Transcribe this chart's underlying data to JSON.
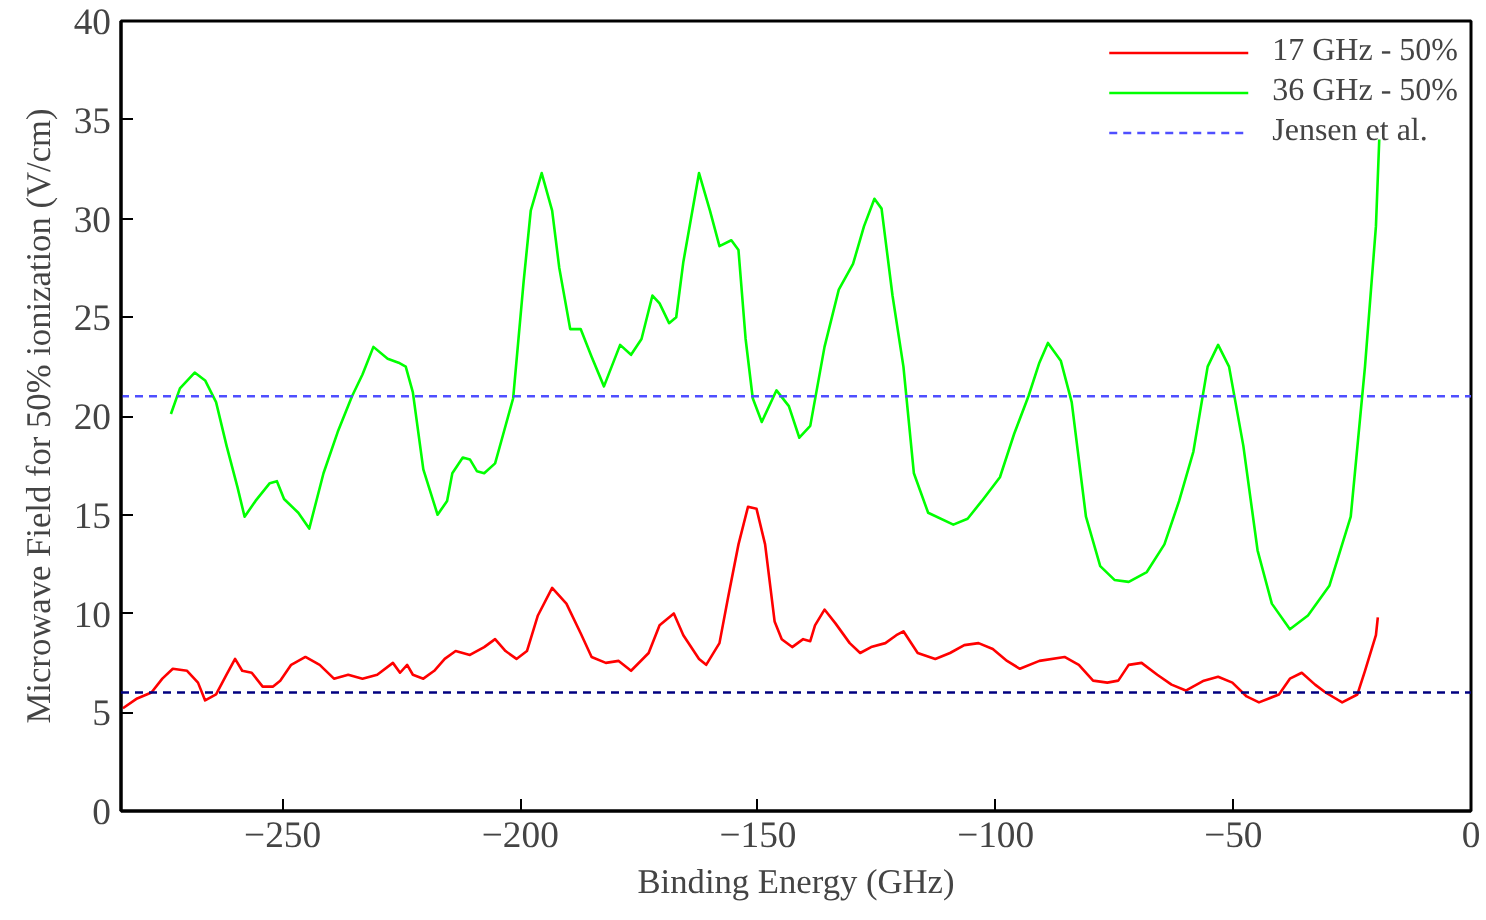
{
  "chart_data": {
    "type": "line",
    "xlabel": "Binding Energy (GHz)",
    "ylabel": "Microwave Field for 50% ionization (V/cm)",
    "xlim": [
      -284,
      0
    ],
    "xticks": [
      -250,
      -200,
      -150,
      -100,
      -50,
      0
    ],
    "ylim": [
      0,
      40
    ],
    "yticks": [
      0,
      5,
      10,
      15,
      20,
      25,
      30,
      35,
      40
    ],
    "grid": false,
    "legend": "top right",
    "line_style": "solid",
    "marker": "none",
    "series": [
      {
        "name": "17 GHz - 50%",
        "color": "#ff0000",
        "x": [
          -283.6,
          -280.6,
          -277.6,
          -275.3,
          -273.1,
          -270.1,
          -267.8,
          -266.3,
          -264,
          -261.8,
          -260,
          -258.5,
          -256.5,
          -254.2,
          -252,
          -250.5,
          -248.2,
          -245.2,
          -242.2,
          -239.2,
          -236.2,
          -233.2,
          -230.1,
          -226.8,
          -225.3,
          -223.8,
          -222.6,
          -220.4,
          -218.1,
          -215.9,
          -213.6,
          -210.6,
          -207.6,
          -205.3,
          -203.1,
          -200.8,
          -198.6,
          -196.3,
          -193.3,
          -190.3,
          -187.3,
          -185,
          -182,
          -179.3,
          -176.7,
          -173,
          -170.7,
          -167.7,
          -165.7,
          -162.4,
          -160.9,
          -158.1,
          -156.3,
          -154.1,
          -152.1,
          -150.3,
          -148.5,
          -146.5,
          -145,
          -142.8,
          -140.5,
          -139,
          -138,
          -136,
          -133.7,
          -130.7,
          -128.5,
          -126.2,
          -123.2,
          -120.9,
          -119.4,
          -116.4,
          -112.7,
          -109.6,
          -106.6,
          -103.6,
          -100.6,
          -97.6,
          -94.9,
          -90.8,
          -85.5,
          -82.5,
          -79.5,
          -76.5,
          -74.2,
          -72,
          -69.3,
          -66,
          -63,
          -60,
          -56.2,
          -53.2,
          -50.2,
          -47.2,
          -44.6,
          -40.4,
          -38.1,
          -35.6,
          -32.8,
          -30.6,
          -27.1,
          -23.9,
          -22.3,
          -20,
          -19.6
        ],
        "values": [
          5.2,
          5.7,
          6.0,
          6.7,
          7.2,
          7.1,
          6.5,
          5.6,
          5.9,
          6.9,
          7.7,
          7.1,
          7.0,
          6.3,
          6.3,
          6.6,
          7.4,
          7.8,
          7.4,
          6.7,
          6.9,
          6.7,
          6.9,
          7.5,
          7.0,
          7.4,
          6.9,
          6.7,
          7.1,
          7.7,
          8.1,
          7.9,
          8.3,
          8.7,
          8.1,
          7.7,
          8.1,
          9.9,
          11.3,
          10.5,
          9.0,
          7.8,
          7.5,
          7.6,
          7.1,
          8.0,
          9.4,
          10.0,
          8.9,
          7.7,
          7.4,
          8.5,
          10.8,
          13.5,
          15.4,
          15.3,
          13.5,
          9.6,
          8.7,
          8.3,
          8.7,
          8.6,
          9.4,
          10.2,
          9.5,
          8.5,
          8.0,
          8.3,
          8.5,
          8.9,
          9.1,
          8.0,
          7.7,
          8.0,
          8.4,
          8.5,
          8.2,
          7.6,
          7.2,
          7.6,
          7.8,
          7.4,
          6.6,
          6.5,
          6.6,
          7.4,
          7.5,
          6.9,
          6.4,
          6.1,
          6.6,
          6.8,
          6.5,
          5.8,
          5.5,
          5.9,
          6.7,
          7.0,
          6.4,
          6.0,
          5.5,
          5.9,
          7.1,
          8.9,
          9.8
        ]
      },
      {
        "name": "36 GHz - 50%",
        "color": "#00ff00",
        "x": [
          -273.5,
          -271.6,
          -268.5,
          -266.3,
          -264,
          -261.8,
          -259.5,
          -258,
          -255.7,
          -252.7,
          -251.2,
          -249.7,
          -246.7,
          -244.4,
          -241.4,
          -238.4,
          -235.4,
          -233.2,
          -230.9,
          -227.9,
          -225.6,
          -224.1,
          -222.6,
          -220.4,
          -217.4,
          -215.4,
          -214.3,
          -212.1,
          -210.6,
          -209.1,
          -207.6,
          -205.3,
          -203.8,
          -201.5,
          -199.3,
          -197.8,
          -195.5,
          -193.3,
          -191.8,
          -189.5,
          -187.3,
          -185,
          -182.4,
          -179,
          -176.7,
          -174.5,
          -172.2,
          -170.7,
          -168.7,
          -167.2,
          -165.7,
          -162.4,
          -160.1,
          -158.1,
          -155.6,
          -154.1,
          -152.6,
          -151.1,
          -149.2,
          -146.1,
          -143.5,
          -141.3,
          -139,
          -136,
          -133,
          -130,
          -127.7,
          -125.5,
          -124,
          -121.7,
          -119.4,
          -117.2,
          -114.2,
          -108.9,
          -105.9,
          -102.9,
          -99.1,
          -96.1,
          -93.1,
          -90.8,
          -89,
          -86.3,
          -84,
          -81,
          -78,
          -75,
          -72,
          -68.2,
          -64.5,
          -61.4,
          -58.4,
          -55.4,
          -53.2,
          -50.9,
          -47.9,
          -44.9,
          -41.9,
          -38.1,
          -34.3,
          -29.8,
          -25.3,
          -22.3,
          -20,
          -19.3
        ],
        "values": [
          20.1,
          21.4,
          22.2,
          21.8,
          20.7,
          18.5,
          16.4,
          14.9,
          15.7,
          16.6,
          16.7,
          15.8,
          15.1,
          14.3,
          17.1,
          19.2,
          21.0,
          22.1,
          23.5,
          22.9,
          22.7,
          22.5,
          21.2,
          17.3,
          15.0,
          15.7,
          17.1,
          17.9,
          17.8,
          17.2,
          17.1,
          17.6,
          18.9,
          20.9,
          26.8,
          30.4,
          32.3,
          30.4,
          27.5,
          24.4,
          24.4,
          23.0,
          21.5,
          23.6,
          23.1,
          23.9,
          26.1,
          25.7,
          24.7,
          25.0,
          27.8,
          32.3,
          30.4,
          28.6,
          28.9,
          28.4,
          23.9,
          20.9,
          19.7,
          21.3,
          20.5,
          18.9,
          19.5,
          23.5,
          26.4,
          27.7,
          29.6,
          31.0,
          30.5,
          26.1,
          22.5,
          17.1,
          15.1,
          14.5,
          14.8,
          15.7,
          16.9,
          19.1,
          21.0,
          22.7,
          23.7,
          22.8,
          20.7,
          14.9,
          12.4,
          11.7,
          11.6,
          12.1,
          13.5,
          15.7,
          18.2,
          22.5,
          23.6,
          22.5,
          18.5,
          13.2,
          10.5,
          9.2,
          9.9,
          11.4,
          14.9,
          22.5,
          29.6,
          34.0
        ]
      }
    ],
    "ref_lines": [
      {
        "axis": "y",
        "value": 21,
        "label": "Jensen et al.",
        "color": "#4f4fff",
        "line_style": "dashed"
      },
      {
        "axis": "y",
        "value": 6,
        "color": "#000080",
        "line_style": "dashed"
      }
    ]
  }
}
